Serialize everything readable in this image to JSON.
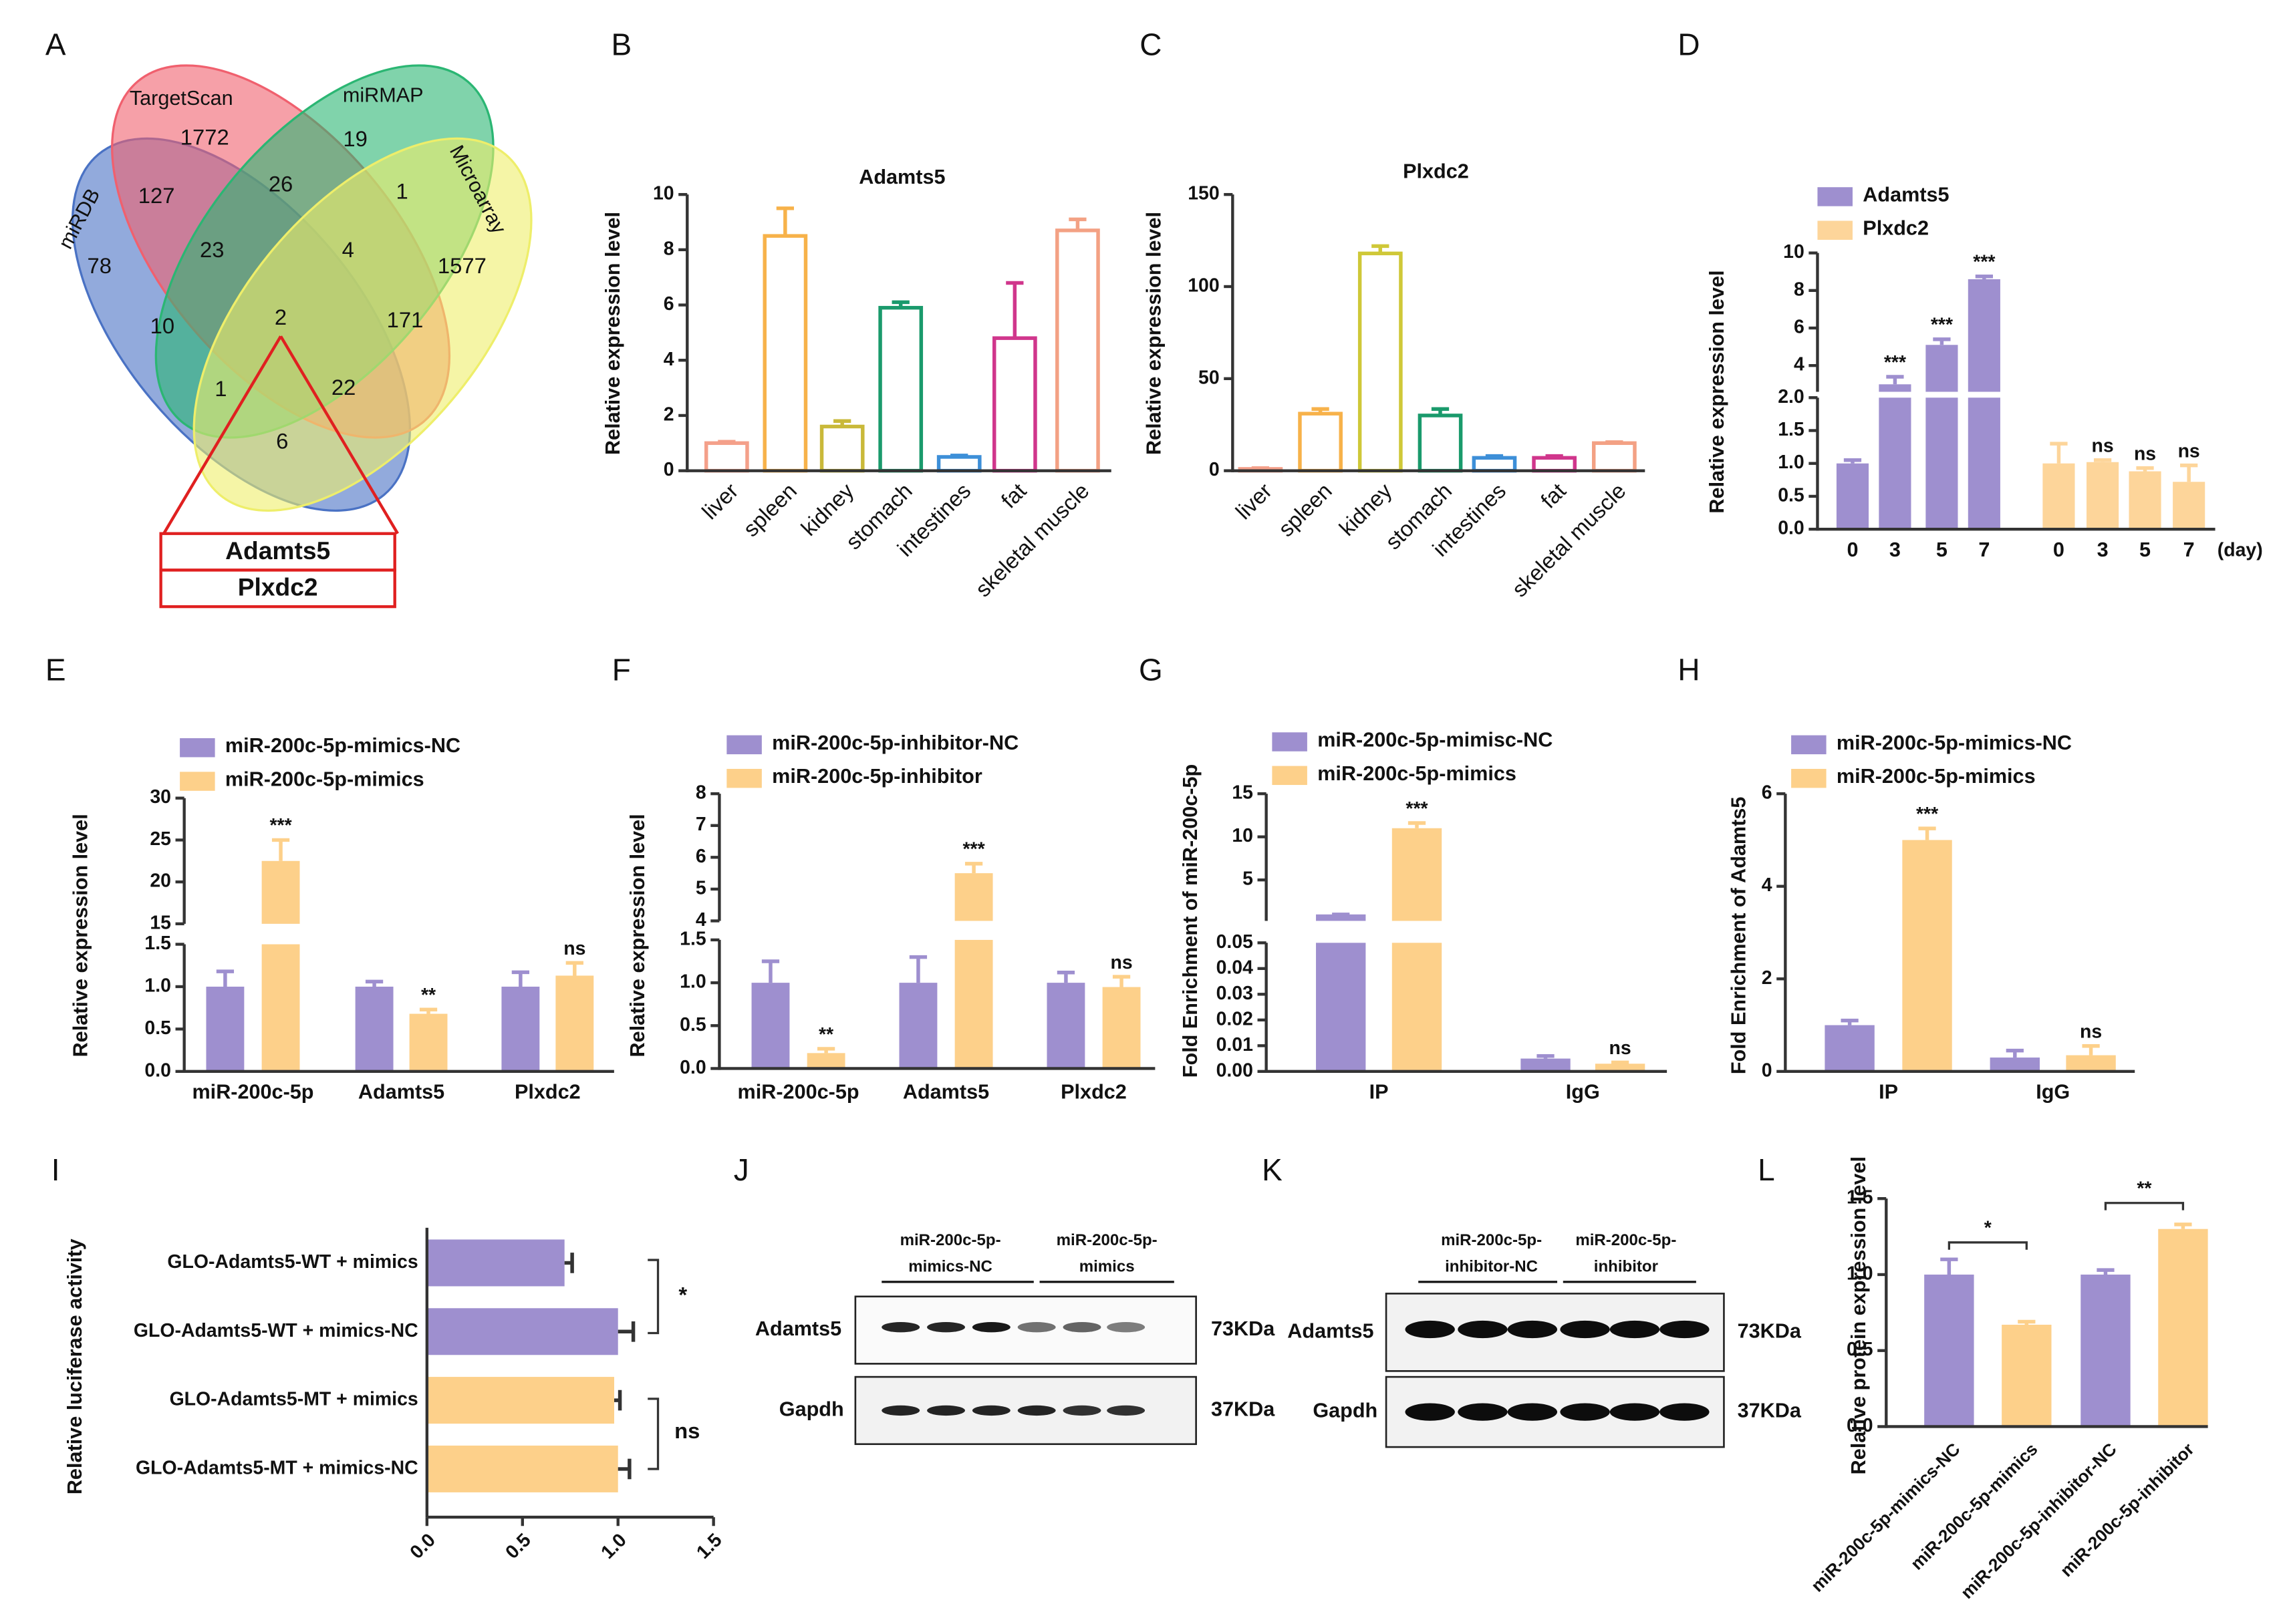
{
  "panel_labels": [
    "A",
    "B",
    "C",
    "D",
    "E",
    "F",
    "G",
    "H",
    "I",
    "J",
    "K",
    "L"
  ],
  "venn": {
    "sets": [
      "miRDB",
      "TargetScan",
      "miRMAP",
      "Microarray"
    ],
    "colors": [
      "#4a72c4",
      "#f0606e",
      "#2bb673",
      "#eeee6a"
    ],
    "regions": [
      78,
      1772,
      19,
      1577,
      127,
      26,
      1,
      23,
      4,
      10,
      2,
      171,
      1,
      22,
      6
    ],
    "genes": [
      "Adamts5",
      "Plxdc2"
    ]
  },
  "chart_data": [
    {
      "type": "bar",
      "title": "Adamts5",
      "ylabel": "Relative expression level",
      "categories": [
        "liver",
        "spleen",
        "kidney",
        "stomach",
        "intestines",
        "fat",
        "skeletal muscle"
      ],
      "values": [
        1.0,
        8.5,
        1.6,
        5.9,
        0.5,
        4.8,
        8.7
      ],
      "errors": [
        0.05,
        1.0,
        0.2,
        0.2,
        0.05,
        2.0,
        0.4
      ],
      "colors": [
        "#f4a08a",
        "#f7b24a",
        "#c9b93a",
        "#1a9a6c",
        "#3d8fd8",
        "#d0368c",
        "#f3a184"
      ],
      "bar_style": "outline",
      "ylim": [
        0,
        10
      ],
      "yticks": [
        0,
        2,
        4,
        6,
        8,
        10
      ]
    },
    {
      "type": "bar",
      "title": "Plxdc2",
      "ylabel": "Relative expression level",
      "categories": [
        "liver",
        "spleen",
        "kidney",
        "stomach",
        "intestines",
        "fat",
        "skeletal muscle"
      ],
      "values": [
        1,
        31,
        118,
        30,
        7,
        7,
        15
      ],
      "errors": [
        0.4,
        2.5,
        4,
        3.5,
        1,
        1,
        0.5
      ],
      "colors": [
        "#f4a08a",
        "#f7b24a",
        "#cfc838",
        "#1a9a6c",
        "#3d8fd8",
        "#d0368c",
        "#f3a184"
      ],
      "bar_style": "outline",
      "ylim": [
        0,
        150
      ],
      "yticks": [
        0,
        50,
        100,
        150
      ]
    },
    {
      "type": "bar",
      "ylabel": "Relative expression level",
      "categories": [
        "0",
        "3",
        "5",
        "7"
      ],
      "x_unit": "(day)",
      "group_by": "series",
      "legend": true,
      "series": [
        {
          "name": "Adamts5",
          "color": "#9e8fcf",
          "values": [
            1.0,
            3.0,
            5.1,
            8.6
          ],
          "errors": [
            0.05,
            0.4,
            0.3,
            0.15
          ],
          "significance": [
            null,
            "***",
            "***",
            "***"
          ]
        },
        {
          "name": "Plxdc2",
          "color": "#fdd59a",
          "values": [
            1.0,
            1.02,
            0.88,
            0.72
          ],
          "errors": [
            0.3,
            0.03,
            0.05,
            0.25
          ],
          "significance": [
            null,
            "ns",
            "ns",
            "ns"
          ]
        }
      ],
      "y_segments": [
        {
          "ylim": [
            0,
            2
          ],
          "yticks": [
            {
              "value": 0,
              "label": "0.0"
            },
            0.5,
            {
              "value": 1,
              "label": "1.0"
            },
            1.5,
            {
              "value": 2,
              "label": "2.0"
            }
          ]
        },
        {
          "ylim": [
            2.6,
            10
          ],
          "yticks": [
            4,
            6,
            8,
            10
          ]
        }
      ]
    },
    {
      "type": "bar",
      "ylabel": "Relative expression level",
      "categories": [
        "miR-200c-5p",
        "Adamts5",
        "Plxdc2"
      ],
      "legend": true,
      "series": [
        {
          "name": "miR-200c-5p-mimics-NC",
          "color": "#9e8fcf",
          "values": [
            1.0,
            1.0,
            1.0
          ],
          "errors": [
            0.18,
            0.06,
            0.17
          ]
        },
        {
          "name": "miR-200c-5p-mimics",
          "color": "#fdd08a",
          "values": [
            22.5,
            0.68,
            1.13
          ],
          "errors": [
            2.5,
            0.05,
            0.15
          ],
          "significance": [
            "***",
            "**",
            "ns"
          ]
        }
      ],
      "y_segments": [
        {
          "ylim": [
            0,
            1.5
          ],
          "yticks": [
            {
              "value": 0,
              "label": "0.0"
            },
            0.5,
            {
              "value": 1,
              "label": "1.0"
            },
            1.5
          ]
        },
        {
          "ylim": [
            15,
            30
          ],
          "yticks": [
            15,
            20,
            25,
            30
          ]
        }
      ]
    },
    {
      "type": "bar",
      "ylabel": "Relative expression level",
      "categories": [
        "miR-200c-5p",
        "Adamts5",
        "Plxdc2"
      ],
      "legend": true,
      "series": [
        {
          "name": "miR-200c-5p-inhibitor-NC",
          "color": "#9e8fcf",
          "values": [
            1.0,
            1.0,
            1.0
          ],
          "errors": [
            0.25,
            0.3,
            0.12
          ]
        },
        {
          "name": "miR-200c-5p-inhibitor",
          "color": "#fdd08a",
          "values": [
            0.18,
            5.5,
            0.95
          ],
          "errors": [
            0.05,
            0.3,
            0.12
          ],
          "significance": [
            "**",
            "***",
            "ns"
          ]
        }
      ],
      "y_segments": [
        {
          "ylim": [
            0,
            1.5
          ],
          "yticks": [
            {
              "value": 0,
              "label": "0.0"
            },
            0.5,
            {
              "value": 1,
              "label": "1.0"
            },
            1.5
          ]
        },
        {
          "ylim": [
            4,
            8
          ],
          "yticks": [
            4,
            5,
            6,
            7,
            8
          ]
        }
      ]
    },
    {
      "type": "bar",
      "ylabel": "Fold Enrichment of miR-200c-5p",
      "categories": [
        "IP",
        "IgG"
      ],
      "legend": true,
      "series": [
        {
          "name": "miR-200c-5p-mimisc-NC",
          "color": "#9e8fcf",
          "values": [
            1.0,
            0.005
          ],
          "errors": [
            0,
            0.001
          ]
        },
        {
          "name": "miR-200c-5p-mimics",
          "color": "#fdd08a",
          "values": [
            11.0,
            0.003
          ],
          "errors": [
            0.6,
            0.0005
          ],
          "significance": [
            "***",
            "ns"
          ]
        }
      ],
      "y_segments": [
        {
          "ylim": [
            0,
            0.05
          ],
          "yticks": [
            {
              "value": 0,
              "label": "0.00"
            },
            {
              "value": 0.01,
              "label": "0.01"
            },
            {
              "value": 0.02,
              "label": "0.02"
            },
            {
              "value": 0.03,
              "label": "0.03"
            },
            {
              "value": 0.04,
              "label": "0.04"
            },
            {
              "value": 0.05,
              "label": "0.05"
            }
          ]
        },
        {
          "ylim": [
            0.25,
            15
          ],
          "yticks": [
            5,
            10,
            15
          ]
        }
      ]
    },
    {
      "type": "bar",
      "ylabel": "Fold Enrichment of Adamts5",
      "categories": [
        "IP",
        "IgG"
      ],
      "legend": true,
      "series": [
        {
          "name": "miR-200c-5p-mimics-NC",
          "color": "#9e8fcf",
          "values": [
            1.0,
            0.3
          ],
          "errors": [
            0.1,
            0.15
          ]
        },
        {
          "name": "miR-200c-5p-mimics",
          "color": "#fdd08a",
          "values": [
            5.0,
            0.35
          ],
          "errors": [
            0.25,
            0.2
          ],
          "significance": [
            "***",
            "ns"
          ]
        }
      ],
      "ylim": [
        0,
        6
      ],
      "yticks": [
        0,
        2,
        4,
        6
      ]
    },
    {
      "type": "barh",
      "xlabel": "Relative luciferase activity",
      "categories": [
        "GLO-Adamts5-WT + mimics",
        "GLO-Adamts5-WT + mimics-NC",
        "GLO-Adamts5-MT + mimics",
        "GLO-Adamts5-MT + mimics-NC"
      ],
      "values": [
        0.72,
        1.0,
        0.98,
        1.0
      ],
      "errors": [
        0.04,
        0.08,
        0.03,
        0.06
      ],
      "colors": [
        "#9e8fcf",
        "#9e8fcf",
        "#fdd08a",
        "#fdd08a"
      ],
      "xlim": [
        0,
        1.5
      ],
      "xticks": [
        {
          "value": 0,
          "label": "0.0"
        },
        0.5,
        {
          "value": 1,
          "label": "1.0"
        },
        1.5
      ],
      "comparisons": [
        "*",
        "ns"
      ]
    },
    {
      "type": "bar",
      "ylabel": "Relative protein expression level",
      "categories": [
        "miR-200c-5p-mimics-NC",
        "miR-200c-5p-mimics",
        "miR-200c-5p-inhibitor-NC",
        "miR-200c-5p-inhibitor"
      ],
      "values": [
        1.0,
        0.67,
        1.0,
        1.3
      ],
      "errors": [
        0.1,
        0.02,
        0.03,
        0.03
      ],
      "colors": [
        "#9e8fcf",
        "#fdd08a",
        "#9e8fcf",
        "#fdd08a"
      ],
      "ylim": [
        0,
        1.5
      ],
      "yticks": [
        {
          "value": 0,
          "label": "0.0"
        },
        0.5,
        {
          "value": 1,
          "label": "1.0"
        },
        1.5
      ],
      "comparisons": [
        "*",
        "**"
      ]
    }
  ],
  "blots": [
    {
      "columns": [
        [
          "miR-200c-5p-",
          "mimics-NC"
        ],
        [
          "miR-200c-5p-",
          "mimics"
        ]
      ],
      "rows": [
        "Adamts5",
        "Gapdh"
      ],
      "sizes": [
        "73KDa",
        "37KDa"
      ]
    },
    {
      "columns": [
        [
          "miR-200c-5p-",
          "inhibitor-NC"
        ],
        [
          "miR-200c-5p-",
          "inhibitor"
        ]
      ],
      "rows": [
        "Adamts5",
        "Gapdh"
      ],
      "sizes": [
        "73KDa",
        "37KDa"
      ]
    }
  ]
}
